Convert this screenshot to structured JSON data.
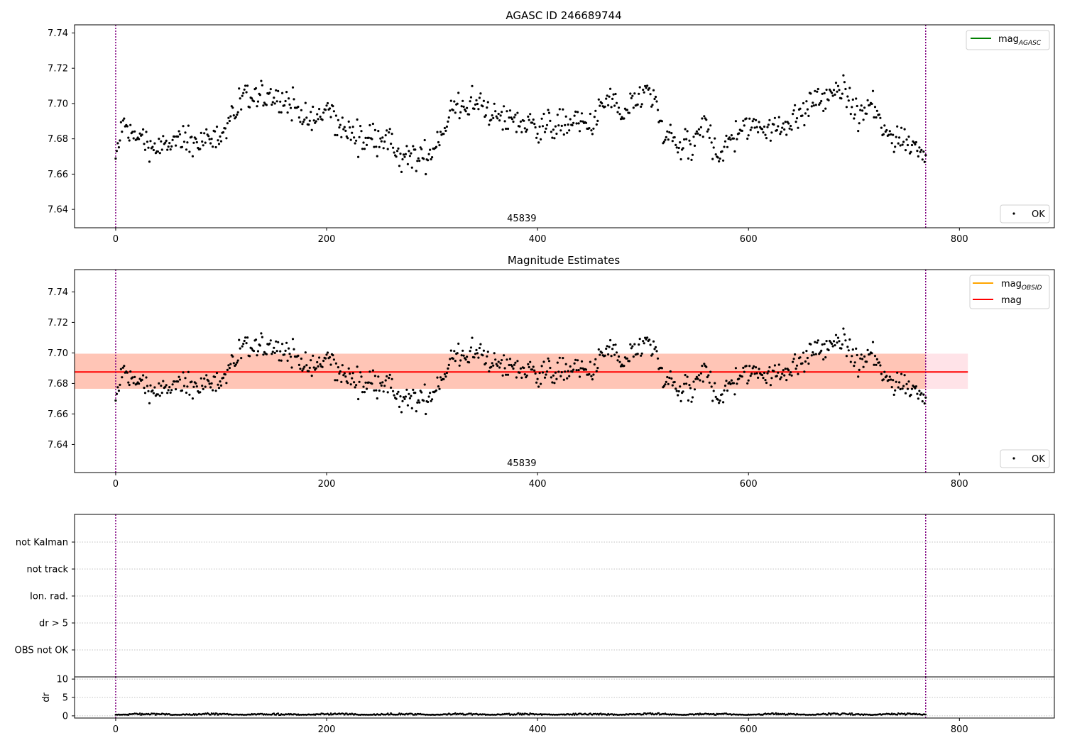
{
  "chart_data": [
    {
      "type": "scatter",
      "title": "AGASC ID 246689744",
      "xlim": [
        -39,
        890
      ],
      "ylim": [
        7.6296,
        7.7446
      ],
      "xticks": [
        0,
        200,
        400,
        600,
        800
      ],
      "yticks": [
        7.64,
        7.66,
        7.68,
        7.7,
        7.72,
        7.74
      ],
      "obsid_label": "45839",
      "obsid_label_x": 385,
      "vlines": [
        0,
        768
      ],
      "legend_upper": [
        "mag_AGASC"
      ],
      "legend_lower": [
        "OK"
      ],
      "series": [
        {
          "name": "OK",
          "n": 768
        }
      ]
    },
    {
      "type": "scatter",
      "title": "Magnitude Estimates",
      "xlim": [
        -39,
        890
      ],
      "ylim": [
        7.6216,
        7.7546
      ],
      "xticks": [
        0,
        200,
        400,
        600,
        800
      ],
      "yticks": [
        7.64,
        7.66,
        7.68,
        7.7,
        7.72,
        7.74
      ],
      "obsid_label": "45839",
      "obsid_label_x": 385,
      "vlines": [
        0,
        768
      ],
      "mag": 7.6875,
      "mag_band": [
        7.6765,
        7.6995
      ],
      "mag_extent": [
        -39,
        808
      ],
      "obsid_band_extent": [
        -39,
        768
      ],
      "legend_upper": [
        "mag_OBSID",
        "mag"
      ],
      "legend_lower": [
        "OK"
      ],
      "series": [
        {
          "name": "OK",
          "n": 768
        }
      ]
    },
    {
      "type": "scatter",
      "xlim": [
        -39,
        890
      ],
      "yticks": [
        "not Kalman",
        "not track",
        "Ion. rad.",
        "dr > 5",
        "OBS not OK"
      ],
      "vlines": [
        0,
        768
      ],
      "flags": []
    },
    {
      "type": "scatter",
      "xlim": [
        -39,
        890
      ],
      "ylim": [
        -0.6,
        10.6
      ],
      "xticks": [
        0,
        200,
        400,
        600,
        800
      ],
      "yticks": [
        0,
        5,
        10
      ],
      "ylabel": "dr",
      "vlines": [
        0,
        768
      ],
      "series": [
        {
          "name": "dr",
          "n": 768
        }
      ]
    }
  ],
  "legend": {
    "agasc_main": "mag",
    "agasc_sub": "AGASC",
    "obsid_main": "mag",
    "obsid_sub": "OBSID",
    "mag": "mag",
    "ok": "OK"
  },
  "colors": {
    "agasc": "#008000",
    "obsid": "#FFA500",
    "mag": "#FF0000",
    "band_obsid": "#FFA07A",
    "band_mag": "#FFC0CB",
    "vline": "#800080",
    "points": "#000000",
    "grid": "#b0b0b0"
  }
}
